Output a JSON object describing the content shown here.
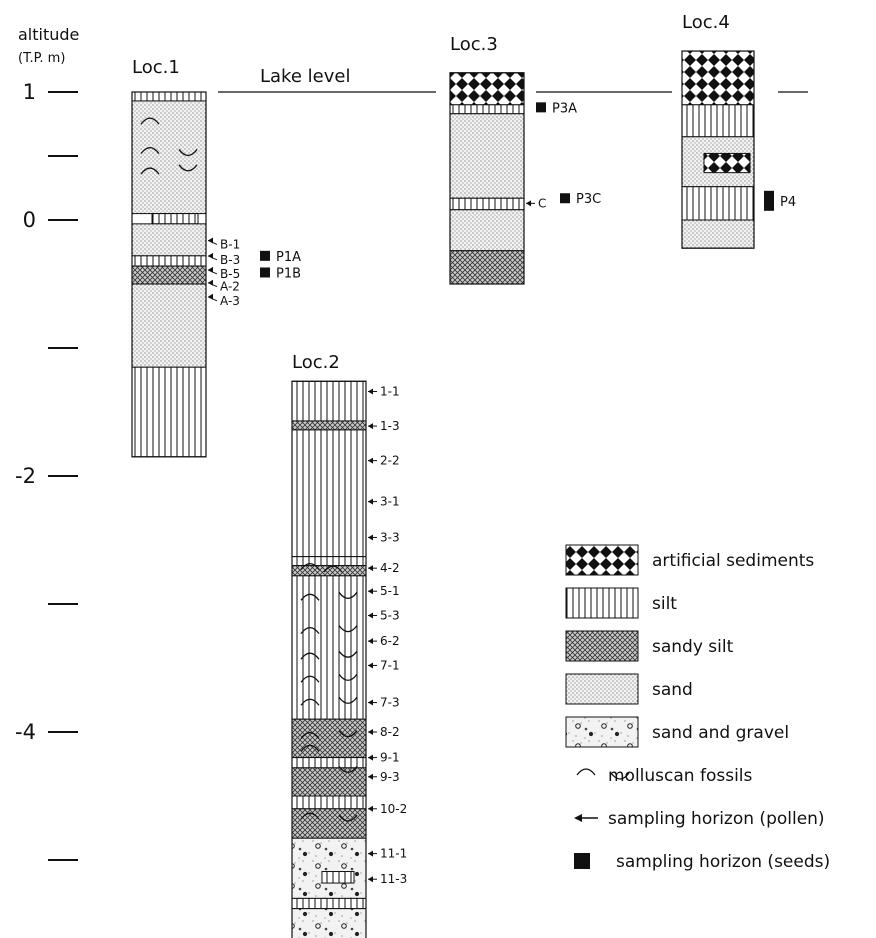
{
  "axis": {
    "title": "altitude",
    "subtitle": "(T.P. m)",
    "ticks": [
      {
        "value": 1,
        "label": "1"
      },
      {
        "value": 0.5,
        "label": ""
      },
      {
        "value": 0,
        "label": "0"
      },
      {
        "value": -1,
        "label": ""
      },
      {
        "value": -2,
        "label": "-2"
      },
      {
        "value": -3,
        "label": ""
      },
      {
        "value": -4,
        "label": "-4"
      },
      {
        "value": -5,
        "label": ""
      }
    ]
  },
  "lake_level_label": "Lake level",
  "locations": [
    {
      "id": "loc1",
      "title": "Loc.1",
      "layers": [
        {
          "top": 1.0,
          "bottom": 0.93,
          "lith": "silt"
        },
        {
          "top": 0.93,
          "bottom": 0.05,
          "lith": "sand"
        },
        {
          "top": 0.05,
          "bottom": -0.03,
          "lith": "silt",
          "partial": true
        },
        {
          "top": -0.03,
          "bottom": -0.28,
          "lith": "sand"
        },
        {
          "top": -0.28,
          "bottom": -0.36,
          "lith": "silt"
        },
        {
          "top": -0.36,
          "bottom": -0.5,
          "lith": "sandy silt"
        },
        {
          "top": -0.5,
          "bottom": -1.15,
          "lith": "sand"
        },
        {
          "top": -1.15,
          "bottom": -1.85,
          "lith": "silt"
        }
      ],
      "molluscs": [
        {
          "y": 0.78,
          "side": "left",
          "shape": "up"
        },
        {
          "y": 0.55,
          "side": "left",
          "shape": "up"
        },
        {
          "y": 0.52,
          "side": "right",
          "shape": "down"
        },
        {
          "y": 0.39,
          "side": "left",
          "shape": "up"
        },
        {
          "y": 0.4,
          "side": "right",
          "shape": "down"
        }
      ],
      "pollen": [
        {
          "label": "B-1",
          "y": -0.16
        },
        {
          "label": "B-3",
          "y": -0.28
        },
        {
          "label": "B-5",
          "y": -0.39
        },
        {
          "label": "A-2",
          "y": -0.49
        },
        {
          "label": "A-3",
          "y": -0.6
        }
      ],
      "seeds": [
        {
          "label": "P1A",
          "y": -0.28
        },
        {
          "label": "P1B",
          "y": -0.41
        }
      ]
    },
    {
      "id": "loc3",
      "title": "Loc.3",
      "layers": [
        {
          "top": 1.15,
          "bottom": 0.9,
          "lith": "artificial sediments"
        },
        {
          "top": 0.9,
          "bottom": 0.83,
          "lith": "silt"
        },
        {
          "top": 0.83,
          "bottom": 0.17,
          "lith": "sand"
        },
        {
          "top": 0.17,
          "bottom": 0.08,
          "lith": "silt"
        },
        {
          "top": 0.08,
          "bottom": -0.24,
          "lith": "sand"
        },
        {
          "top": -0.24,
          "bottom": -0.5,
          "lith": "sandy silt"
        }
      ],
      "molluscs": [],
      "pollen": [
        {
          "label": "C",
          "y": 0.13
        }
      ],
      "seeds": [
        {
          "label": "P3A",
          "y": 0.88
        },
        {
          "label": "P3C",
          "y": 0.17
        }
      ]
    },
    {
      "id": "loc4",
      "title": "Loc.4",
      "layers": [
        {
          "top": 1.32,
          "bottom": 0.9,
          "lith": "artificial sediments"
        },
        {
          "top": 0.9,
          "bottom": 0.65,
          "lith": "silt"
        },
        {
          "top": 0.65,
          "bottom": 0.26,
          "lith": "sand"
        },
        {
          "top": 0.26,
          "bottom": 0.0,
          "lith": "silt"
        },
        {
          "top": 0.0,
          "bottom": -0.22,
          "lith": "sand"
        }
      ],
      "inclusions": [
        {
          "top": 0.52,
          "bottom": 0.37,
          "lith": "artificial sediments"
        }
      ],
      "molluscs": [],
      "pollen": [],
      "seeds": [
        {
          "label": "P4",
          "y": 0.15
        }
      ]
    },
    {
      "id": "loc2",
      "title": "Loc.2",
      "layers": [
        {
          "top": -1.26,
          "bottom": -1.57,
          "lith": "silt"
        },
        {
          "top": -1.57,
          "bottom": -1.64,
          "lith": "sandy silt"
        },
        {
          "top": -1.64,
          "bottom": -2.63,
          "lith": "silt"
        },
        {
          "top": -2.63,
          "bottom": -2.7,
          "lith": "silt"
        },
        {
          "top": -2.7,
          "bottom": -2.78,
          "lith": "sandy silt"
        },
        {
          "top": -2.78,
          "bottom": -3.9,
          "lith": "silt"
        },
        {
          "top": -3.9,
          "bottom": -4.2,
          "lith": "sandy silt"
        },
        {
          "top": -4.2,
          "bottom": -4.28,
          "lith": "silt"
        },
        {
          "top": -4.28,
          "bottom": -4.5,
          "lith": "sandy silt"
        },
        {
          "top": -4.5,
          "bottom": -4.6,
          "lith": "silt"
        },
        {
          "top": -4.6,
          "bottom": -4.83,
          "lith": "sandy silt"
        },
        {
          "top": -4.83,
          "bottom": -5.3,
          "lith": "sand and gravel"
        },
        {
          "top": -5.3,
          "bottom": -5.38,
          "lith": "silt"
        },
        {
          "top": -5.38,
          "bottom": -5.7,
          "lith": "sand and gravel"
        }
      ],
      "inclusions": [
        {
          "top": -5.09,
          "bottom": -5.18,
          "lith": "silt"
        }
      ],
      "molluscs": [
        {
          "y": -2.7,
          "side": "left",
          "shape": "up"
        },
        {
          "y": -2.72,
          "side": "mid",
          "shape": "up"
        },
        {
          "y": -2.94,
          "side": "left",
          "shape": "up"
        },
        {
          "y": -2.94,
          "side": "right",
          "shape": "down"
        },
        {
          "y": -3.2,
          "side": "left",
          "shape": "up"
        },
        {
          "y": -3.2,
          "side": "right",
          "shape": "down"
        },
        {
          "y": -3.4,
          "side": "left",
          "shape": "up"
        },
        {
          "y": -3.4,
          "side": "right",
          "shape": "down"
        },
        {
          "y": -3.58,
          "side": "left",
          "shape": "up"
        },
        {
          "y": -3.58,
          "side": "right",
          "shape": "down"
        },
        {
          "y": -3.76,
          "side": "left",
          "shape": "up"
        },
        {
          "y": -3.76,
          "side": "right",
          "shape": "down"
        },
        {
          "y": -4.02,
          "side": "left",
          "shape": "up"
        },
        {
          "y": -4.02,
          "side": "right",
          "shape": "down"
        },
        {
          "y": -4.12,
          "side": "left",
          "shape": "up"
        },
        {
          "y": -4.3,
          "side": "right",
          "shape": "down"
        },
        {
          "y": -4.65,
          "side": "left",
          "shape": "up"
        },
        {
          "y": -4.68,
          "side": "right",
          "shape": "down"
        }
      ],
      "pollen": [
        {
          "label": "1-1",
          "y": -1.34
        },
        {
          "label": "1-3",
          "y": -1.61
        },
        {
          "label": "2-2",
          "y": -1.88
        },
        {
          "label": "3-1",
          "y": -2.2
        },
        {
          "label": "3-3",
          "y": -2.48
        },
        {
          "label": "4-2",
          "y": -2.72
        },
        {
          "label": "5-1",
          "y": -2.9
        },
        {
          "label": "5-3",
          "y": -3.09
        },
        {
          "label": "6-2",
          "y": -3.29
        },
        {
          "label": "7-1",
          "y": -3.48
        },
        {
          "label": "7-3",
          "y": -3.77
        },
        {
          "label": "8-2",
          "y": -4.0
        },
        {
          "label": "9-1",
          "y": -4.2
        },
        {
          "label": "9-3",
          "y": -4.35
        },
        {
          "label": "10-2",
          "y": -4.6
        },
        {
          "label": "11-1",
          "y": -4.95
        },
        {
          "label": "11-3",
          "y": -5.15
        }
      ],
      "seeds": []
    }
  ],
  "legend": [
    {
      "lith": "artificial sediments",
      "label": "artificial sediments"
    },
    {
      "lith": "silt",
      "label": "silt"
    },
    {
      "lith": "sandy silt",
      "label": "sandy silt"
    },
    {
      "lith": "sand",
      "label": "sand"
    },
    {
      "lith": "sand and gravel",
      "label": "sand and gravel"
    },
    {
      "symbol": "mollusc",
      "label": "molluscan fossils"
    },
    {
      "symbol": "arrow",
      "label": "sampling horizon (pollen)"
    },
    {
      "symbol": "square",
      "label": "sampling horizon (seeds)"
    }
  ]
}
